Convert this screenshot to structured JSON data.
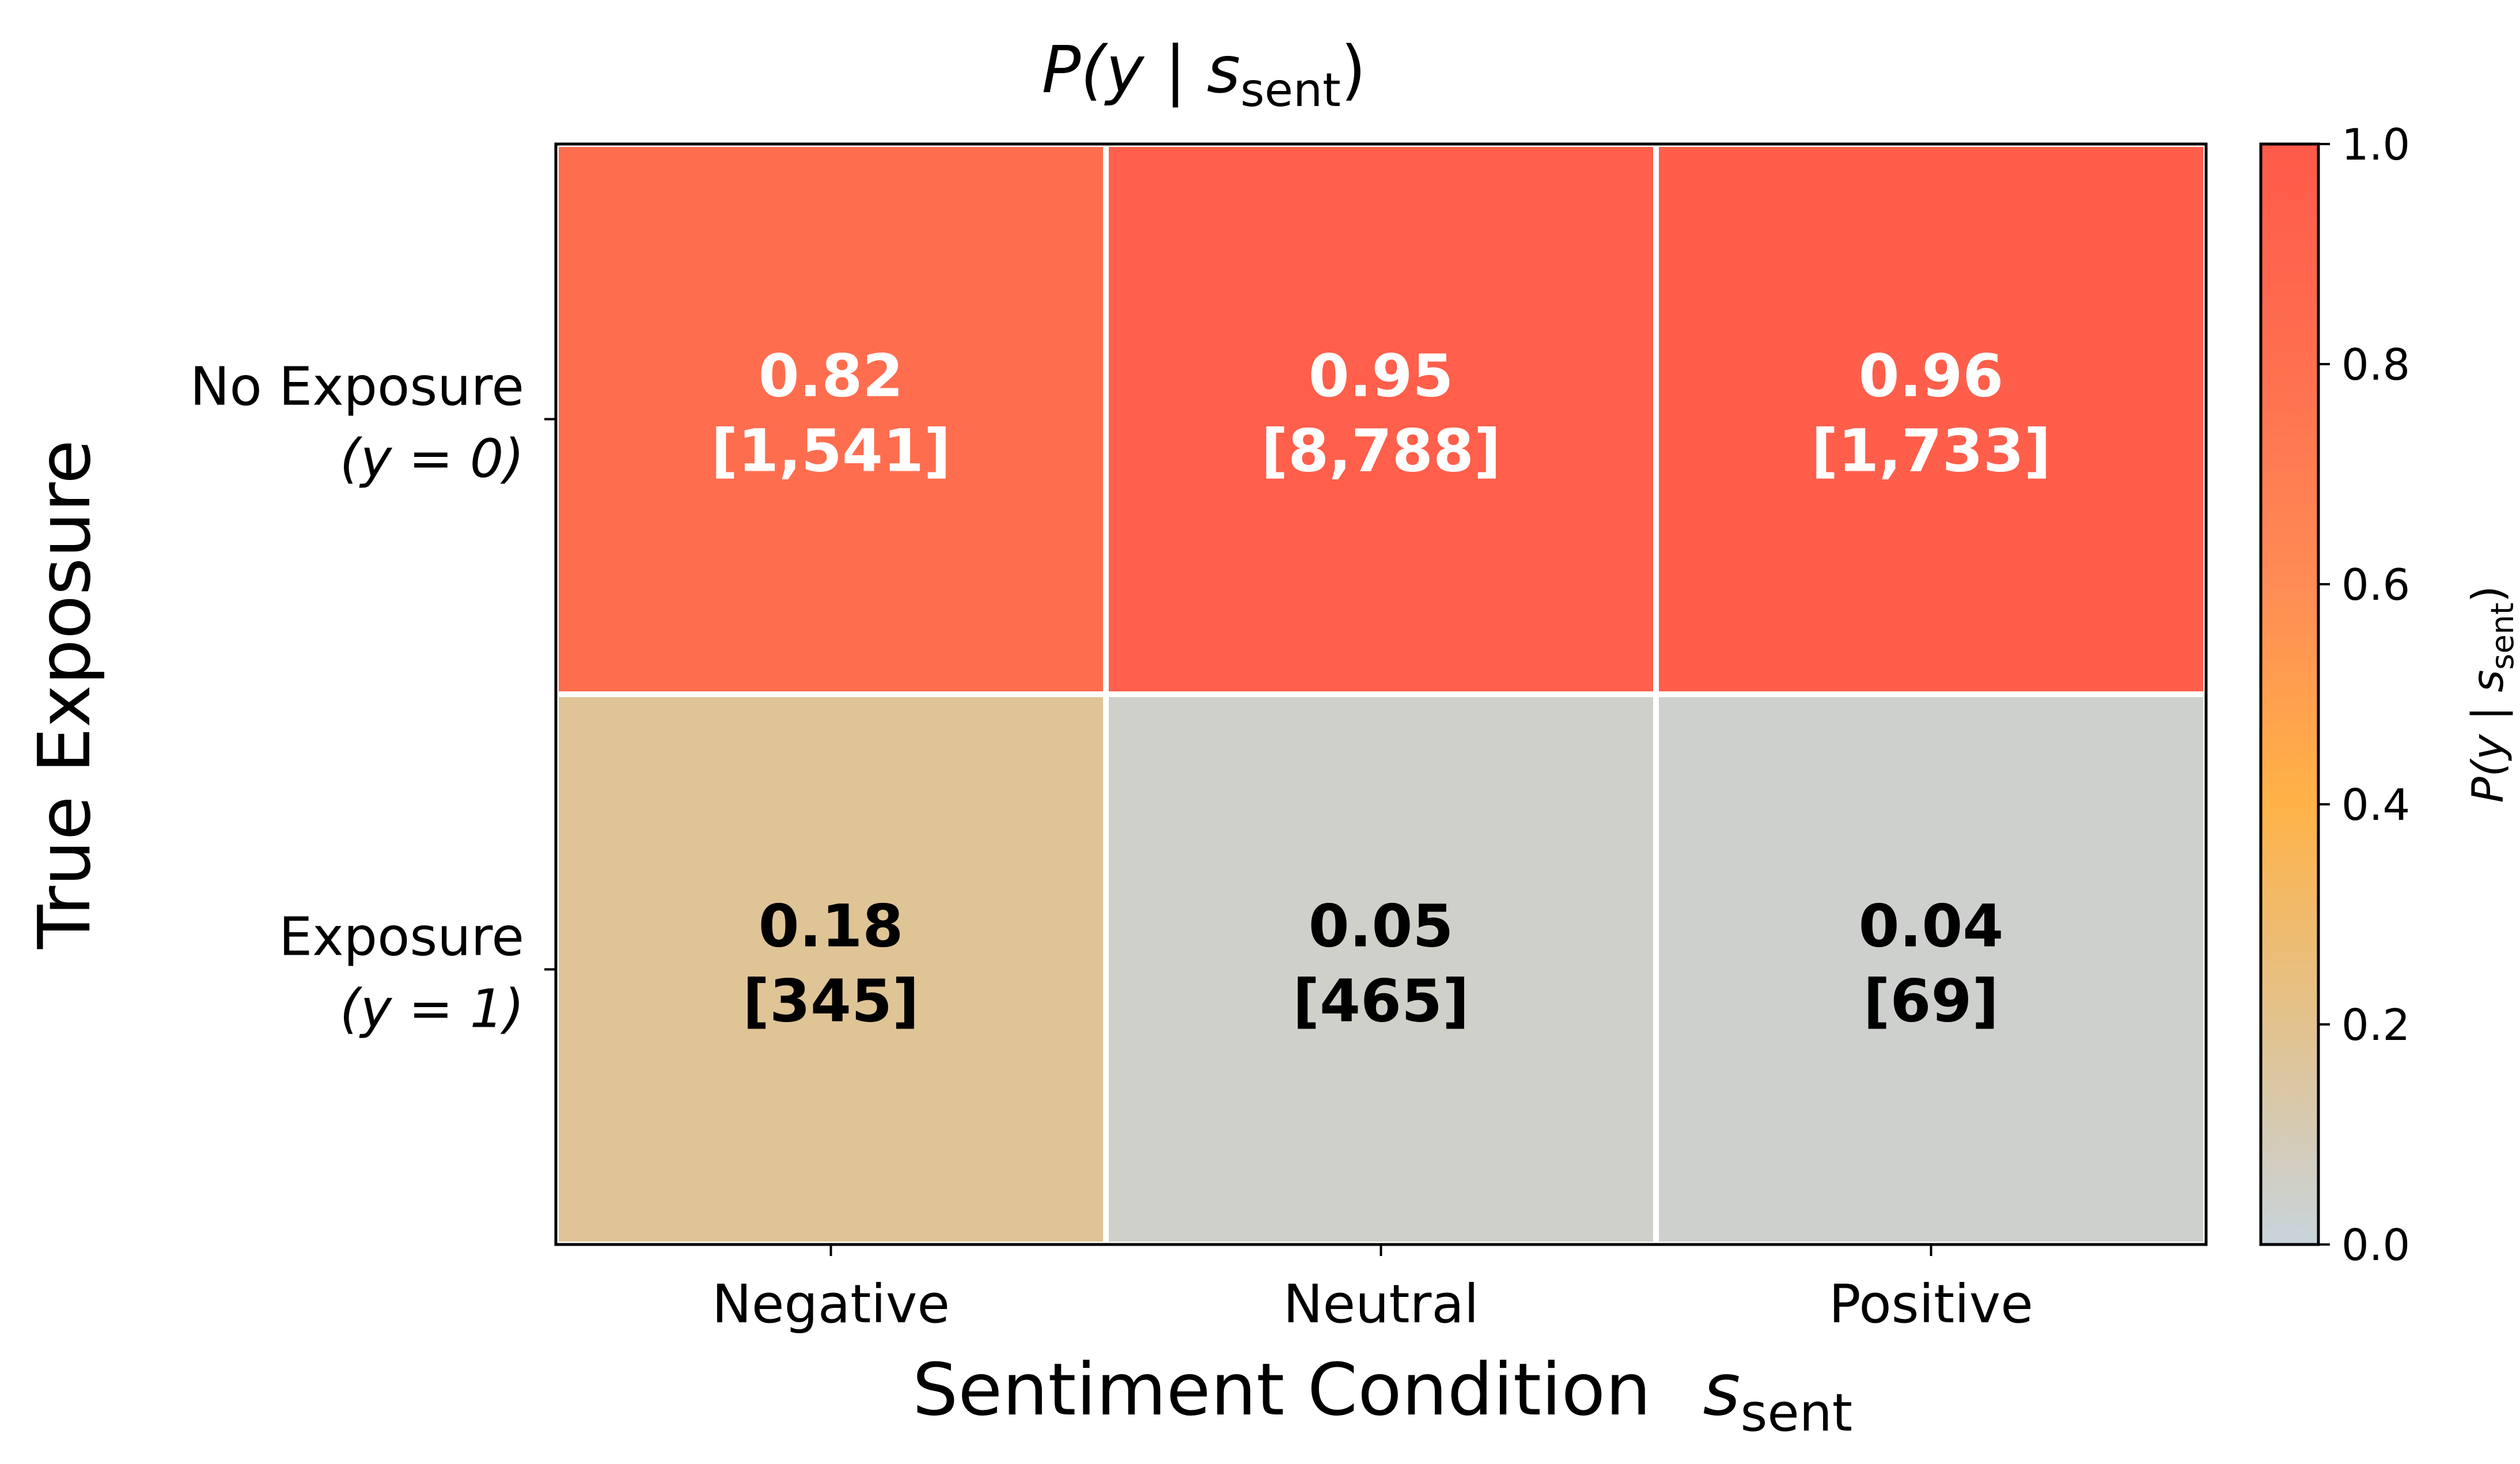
{
  "chart_data": {
    "type": "heatmap",
    "title": {
      "prefix": "P(y | ",
      "var": "s",
      "sub": "sent",
      "suffix": ")"
    },
    "xlabel": {
      "text": "Sentiment Condition",
      "var": "s",
      "sub": "sent"
    },
    "ylabel": "True Exposure",
    "x_categories": [
      "Negative",
      "Neutral",
      "Positive"
    ],
    "y_categories": [
      {
        "line1": "No Exposure",
        "line2": "(y = 0)"
      },
      {
        "line1": "Exposure",
        "line2": "(y = 1)"
      }
    ],
    "values": [
      [
        0.82,
        0.95,
        0.96
      ],
      [
        0.18,
        0.05,
        0.04
      ]
    ],
    "counts": [
      [
        "[1,541]",
        "[8,788]",
        "[1,733]"
      ],
      [
        "[345]",
        "[465]",
        "[69]"
      ]
    ],
    "value_labels": [
      [
        "0.82",
        "0.95",
        "0.96"
      ],
      [
        "0.18",
        "0.05",
        "0.04"
      ]
    ],
    "colorbar": {
      "label": {
        "prefix": "P(y | ",
        "var": "s",
        "sub": "sent",
        "suffix": ")"
      },
      "range": [
        0.0,
        1.0
      ],
      "ticks": [
        "0.0",
        "0.2",
        "0.4",
        "0.6",
        "0.8",
        "1.0"
      ],
      "colors": [
        "#c8d4dc",
        "#e2c28e",
        "#ffb347",
        "#ff8c55",
        "#ff6f4f",
        "#ff5a4a"
      ]
    },
    "text_colors": {
      "high": "#ffffff",
      "low": "#000000"
    }
  }
}
